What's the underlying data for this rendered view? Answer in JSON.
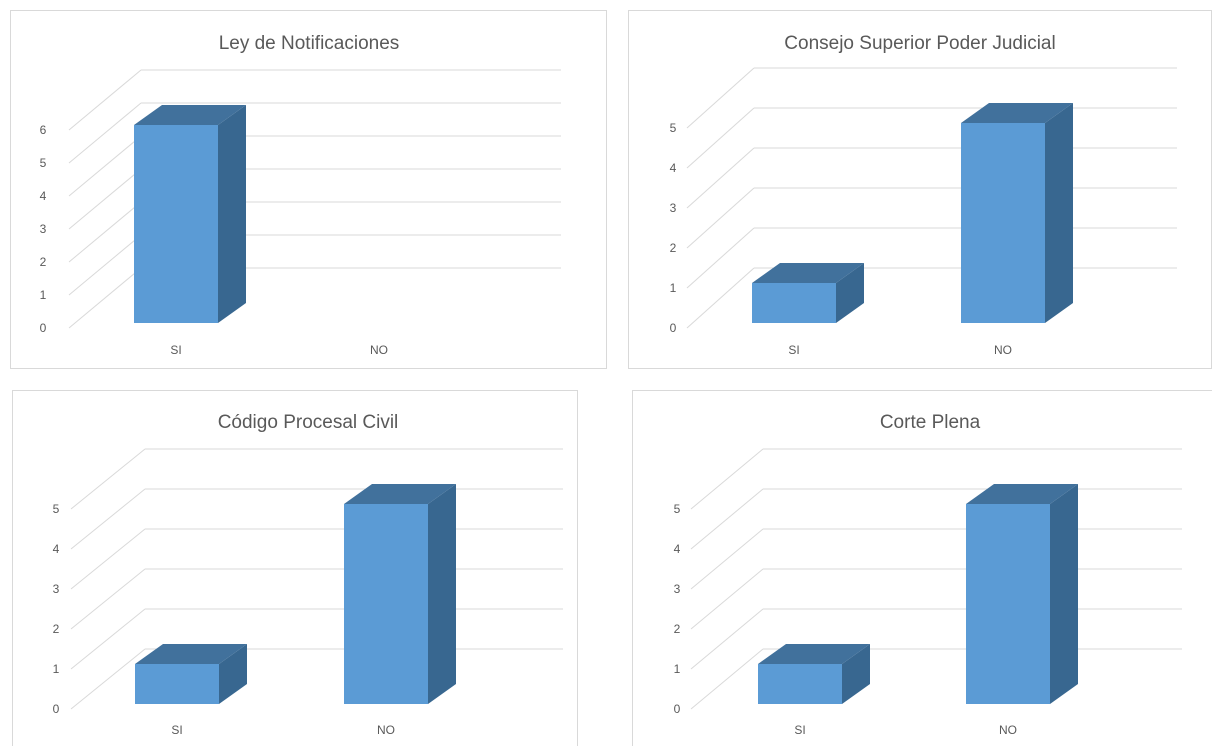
{
  "colors": {
    "bar_front": "#5b9bd5",
    "bar_top": "#41719c",
    "bar_side": "#386790",
    "grid": "#d9d9d9",
    "text": "#595959"
  },
  "chart_data": [
    {
      "type": "bar",
      "title": "Ley de Notificaciones",
      "categories": [
        "SI",
        "NO"
      ],
      "values": [
        6,
        0
      ],
      "yticks": [
        0,
        1,
        2,
        3,
        4,
        5,
        6
      ],
      "ylim": [
        0,
        7
      ],
      "grid": true,
      "legend": "none",
      "style": "3d-column"
    },
    {
      "type": "bar",
      "title": "Consejo Superior Poder Judicial",
      "categories": [
        "SI",
        "NO"
      ],
      "values": [
        1,
        5
      ],
      "yticks": [
        0,
        1,
        2,
        3,
        4,
        5
      ],
      "ylim": [
        0,
        6
      ],
      "grid": true,
      "legend": "none",
      "style": "3d-column"
    },
    {
      "type": "bar",
      "title": "Código Procesal Civil",
      "categories": [
        "SI",
        "NO"
      ],
      "values": [
        1,
        5
      ],
      "yticks": [
        0,
        1,
        2,
        3,
        4,
        5
      ],
      "ylim": [
        0,
        6
      ],
      "grid": true,
      "legend": "none",
      "style": "3d-column"
    },
    {
      "type": "bar",
      "title": "Corte Plena",
      "categories": [
        "SI",
        "NO"
      ],
      "values": [
        1,
        5
      ],
      "yticks": [
        0,
        1,
        2,
        3,
        4,
        5
      ],
      "ylim": [
        0,
        6
      ],
      "grid": true,
      "legend": "none",
      "style": "3d-column"
    }
  ]
}
